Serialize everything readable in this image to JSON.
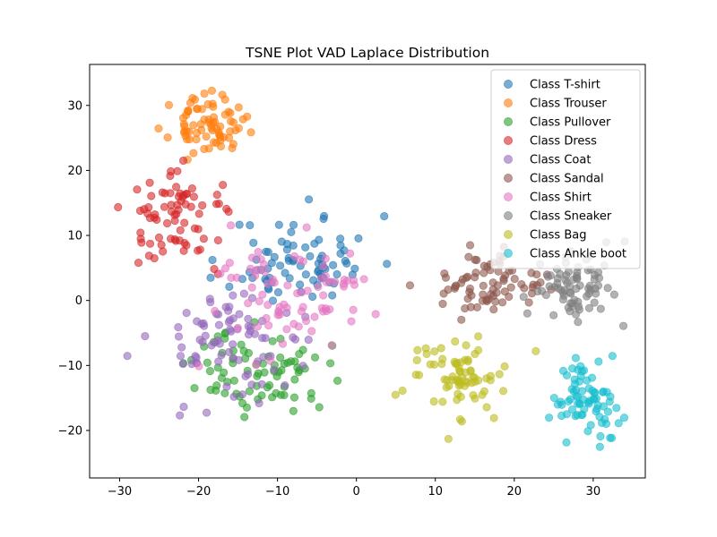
{
  "chart_data": {
    "type": "scatter",
    "title": "TSNE Plot VAD Laplace Distribution",
    "xlabel": "",
    "ylabel": "",
    "xlim": [
      -33.8,
      36.6
    ],
    "ylim": [
      -27.3,
      36.3
    ],
    "xticks": [
      -30,
      -20,
      -10,
      0,
      10,
      20,
      30
    ],
    "yticks": [
      -20,
      -10,
      0,
      10,
      20,
      30
    ],
    "grid": false,
    "legend_position": "top-right",
    "marker_alpha": 0.6,
    "series": [
      {
        "name": "Class T-shirt",
        "color": "#1f77b4",
        "center": [
          -7,
          6
        ],
        "spread": [
          6.5,
          5
        ],
        "count": 80,
        "seed": 11
      },
      {
        "name": "Class Trouser",
        "color": "#ff7f0e",
        "center": [
          -19,
          27
        ],
        "spread": [
          3.2,
          3
        ],
        "count": 75,
        "seed": 23
      },
      {
        "name": "Class Pullover",
        "color": "#2ca02c",
        "center": [
          -12,
          -11
        ],
        "spread": [
          6,
          4.5
        ],
        "count": 80,
        "seed": 37
      },
      {
        "name": "Class Dress",
        "color": "#d62728",
        "center": [
          -22,
          13
        ],
        "spread": [
          5,
          5
        ],
        "count": 75,
        "seed": 41
      },
      {
        "name": "Class Coat",
        "color": "#9467bd",
        "center": [
          -16,
          -6
        ],
        "spread": [
          7,
          7
        ],
        "count": 80,
        "seed": 53
      },
      {
        "name": "Class Sandal",
        "color": "#8c564b",
        "center": [
          17,
          2
        ],
        "spread": [
          5,
          3.5
        ],
        "count": 75,
        "seed": 67
      },
      {
        "name": "Class Shirt",
        "color": "#e377c2",
        "center": [
          -8,
          0
        ],
        "spread": [
          8,
          7
        ],
        "count": 80,
        "seed": 71
      },
      {
        "name": "Class Sneaker",
        "color": "#7f7f7f",
        "center": [
          28,
          2
        ],
        "spread": [
          3.5,
          4
        ],
        "count": 75,
        "seed": 83
      },
      {
        "name": "Class Bag",
        "color": "#bcbd22",
        "center": [
          12,
          -12
        ],
        "spread": [
          5,
          4.5
        ],
        "count": 75,
        "seed": 97
      },
      {
        "name": "Class Ankle boot",
        "color": "#17becf",
        "center": [
          29,
          -15
        ],
        "spread": [
          3,
          4.5
        ],
        "count": 75,
        "seed": 101
      }
    ]
  }
}
